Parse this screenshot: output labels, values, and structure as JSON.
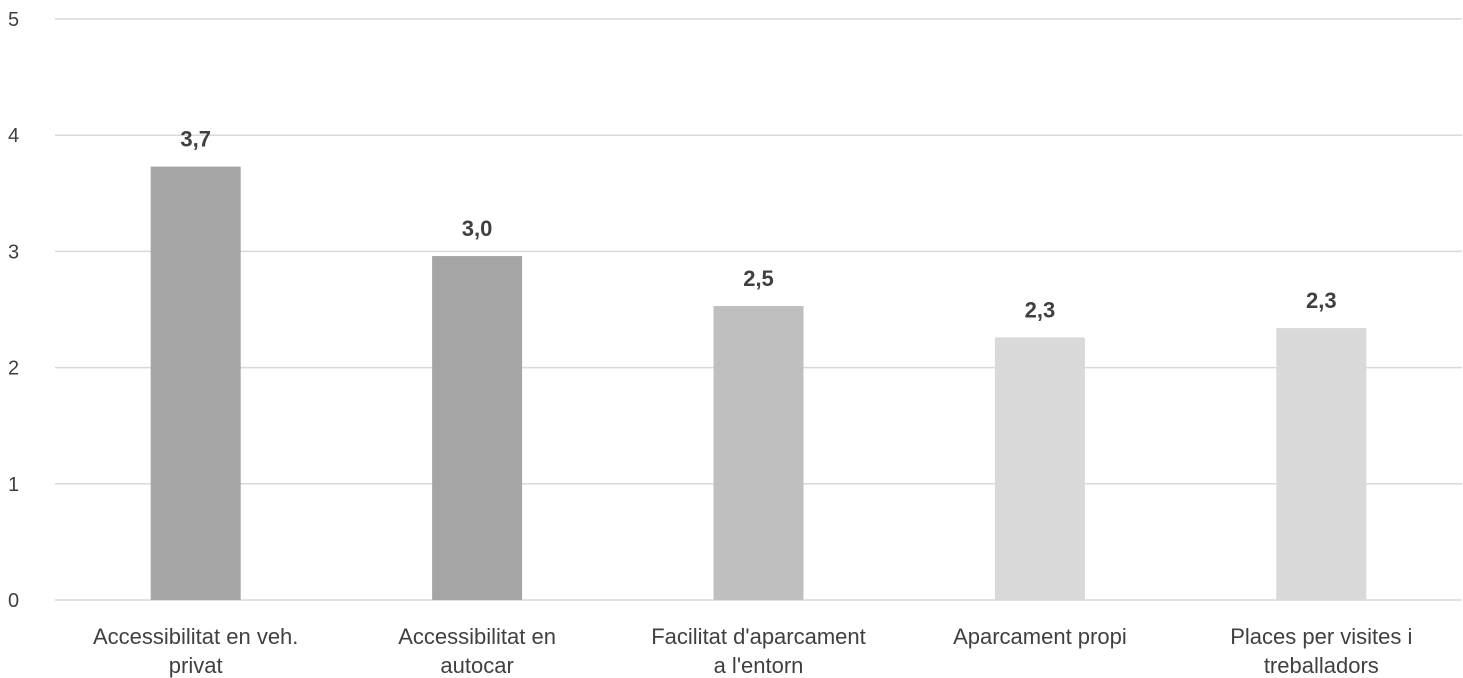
{
  "chart_data": {
    "type": "bar",
    "categories": [
      [
        "Accessibilitat en veh.",
        "privat"
      ],
      [
        "Accessibilitat en",
        "autocar"
      ],
      [
        "Facilitat d'aparcament",
        "a l'entorn"
      ],
      [
        "Aparcament propi"
      ],
      [
        "Places per visites i",
        "treballadors"
      ]
    ],
    "values": [
      3.73,
      2.96,
      2.53,
      2.26,
      2.34
    ],
    "data_labels": [
      "3,7",
      "3,0",
      "2,5",
      "2,3",
      "2,3"
    ],
    "bar_colors": [
      "#a5a5a5",
      "#a5a5a5",
      "#bfbfbf",
      "#d9d9d9",
      "#d9d9d9"
    ],
    "ylim": [
      0,
      5
    ],
    "yticks": [
      "0",
      "1",
      "2",
      "3",
      "4",
      "5"
    ],
    "title": "",
    "xlabel": "",
    "ylabel": "",
    "grid": true,
    "legend": "none"
  }
}
